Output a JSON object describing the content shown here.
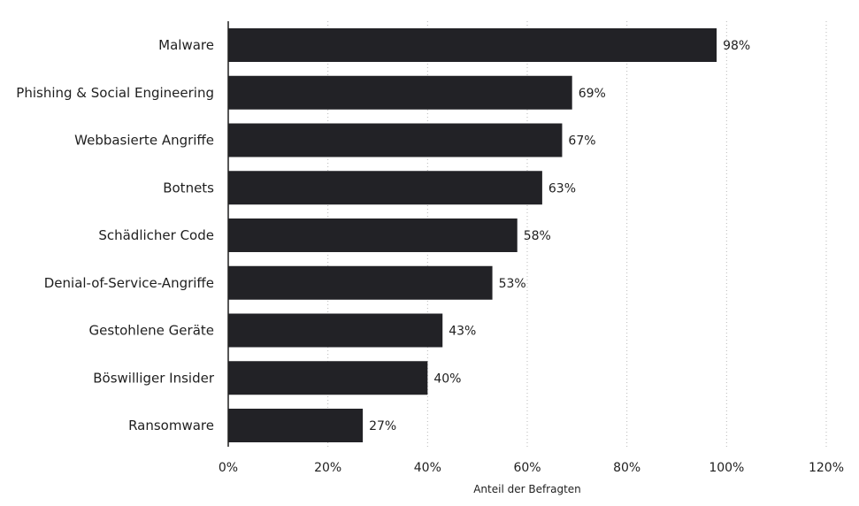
{
  "chart_data": {
    "type": "bar",
    "orientation": "horizontal",
    "categories": [
      "Malware",
      "Phishing & Social Engineering",
      "Webbasierte Angriffe",
      "Botnets",
      "Schädlicher Code",
      "Denial-of-Service-Angriffe",
      "Gestohlene Geräte",
      "Böswilliger Insider",
      "Ransomware"
    ],
    "values": [
      98,
      69,
      67,
      63,
      58,
      53,
      43,
      40,
      27
    ],
    "value_labels": [
      "98%",
      "69%",
      "67%",
      "63%",
      "58%",
      "53%",
      "43%",
      "40%",
      "27%"
    ],
    "xlabel": "Anteil der Befragten",
    "ylabel": "",
    "xlim": [
      0,
      120
    ],
    "xticks": [
      0,
      20,
      40,
      60,
      80,
      100,
      120
    ],
    "xtick_labels": [
      "0%",
      "20%",
      "40%",
      "60%",
      "80%",
      "100%",
      "120%"
    ],
    "grid": "vertical dotted",
    "legend": "none",
    "bar_color": "#222226"
  }
}
